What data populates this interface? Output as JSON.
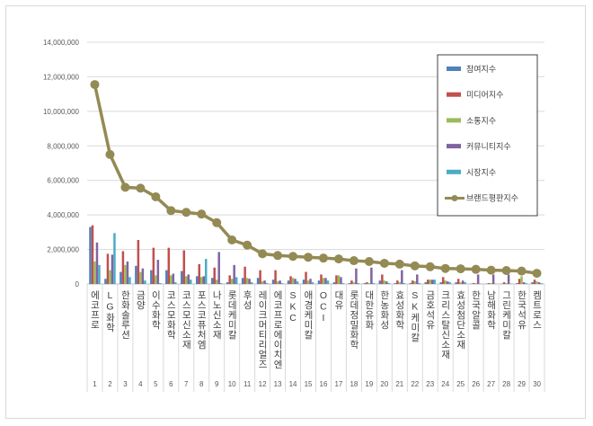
{
  "chart_data": {
    "type": "bar",
    "title": "",
    "xlabel": "",
    "ylabel": "",
    "ylim": [
      0,
      14000000
    ],
    "yticks": [
      "0",
      "2,000,000",
      "4,000,000",
      "6,000,000",
      "8,000,000",
      "10,000,000",
      "12,000,000",
      "14,000,000"
    ],
    "grid": true,
    "legend_position": "right",
    "numbers": [
      "1",
      "2",
      "3",
      "4",
      "5",
      "6",
      "7",
      "8",
      "9",
      "10",
      "11",
      "12",
      "13",
      "14",
      "15",
      "16",
      "17",
      "18",
      "19",
      "20",
      "21",
      "22",
      "23",
      "24",
      "25",
      "26",
      "27",
      "28",
      "29",
      "30"
    ],
    "categories": [
      "에코프로",
      "LG화학",
      "한화솔루션",
      "금양",
      "이수화학",
      "코스모화학",
      "코스모신소재",
      "포스코퓨처엠",
      "나노신소재",
      "롯데케미칼",
      "후성",
      "레이크머티리얼즈",
      "에코프로에이치엔",
      "SKC",
      "애경케미칼",
      "OCI",
      "대유",
      "롯데정밀화학",
      "대한유화",
      "한농화성",
      "효성화학",
      "SK케미칼",
      "금호석유",
      "크리스탈신소재",
      "효성첨단소재",
      "한국알콜",
      "남해화학",
      "그린케미칼",
      "한국석유",
      "켐트로스"
    ],
    "series": [
      {
        "name": "참여지수",
        "kind": "bar",
        "color": "#4F81BD",
        "values": [
          3300000,
          300000,
          700000,
          1050000,
          800000,
          800000,
          750000,
          450000,
          350000,
          100000,
          350000,
          350000,
          250000,
          200000,
          250000,
          200000,
          100000,
          50000,
          50000,
          200000,
          50000,
          50000,
          100000,
          100000,
          100000,
          20000,
          20000,
          20000,
          50000,
          100000
        ]
      },
      {
        "name": "미디어지수",
        "kind": "bar",
        "color": "#C0504D",
        "values": [
          3400000,
          1750000,
          1900000,
          2550000,
          2100000,
          2100000,
          1950000,
          1150000,
          950000,
          500000,
          1000000,
          800000,
          800000,
          450000,
          700000,
          550000,
          500000,
          200000,
          100000,
          550000,
          200000,
          200000,
          250000,
          400000,
          300000,
          50000,
          50000,
          100000,
          300000,
          250000
        ]
      },
      {
        "name": "소통지수",
        "kind": "bar",
        "color": "#9BBB59",
        "values": [
          1300000,
          800000,
          1100000,
          700000,
          500000,
          500000,
          450000,
          400000,
          250000,
          300000,
          350000,
          150000,
          150000,
          350000,
          200000,
          350000,
          500000,
          100000,
          50000,
          200000,
          100000,
          150000,
          250000,
          200000,
          100000,
          50000,
          50000,
          50000,
          450000,
          150000
        ]
      },
      {
        "name": "커뮤니티지수",
        "kind": "bar",
        "color": "#8064A2",
        "values": [
          2400000,
          1700000,
          1300000,
          900000,
          1400000,
          600000,
          550000,
          450000,
          1850000,
          1100000,
          300000,
          200000,
          200000,
          300000,
          300000,
          350000,
          400000,
          900000,
          950000,
          150000,
          800000,
          550000,
          250000,
          150000,
          200000,
          550000,
          550000,
          550000,
          100000,
          100000
        ]
      },
      {
        "name": "시장지수",
        "kind": "bar",
        "color": "#4BACC6",
        "values": [
          1100000,
          2950000,
          400000,
          200000,
          50000,
          100000,
          250000,
          1450000,
          50000,
          400000,
          100000,
          50000,
          50000,
          150000,
          100000,
          200000,
          50000,
          50000,
          50000,
          50000,
          50000,
          50000,
          250000,
          100000,
          100000,
          20000,
          20000,
          20000,
          50000,
          50000
        ]
      },
      {
        "name": "브랜드평판지수",
        "kind": "line",
        "color": "#948A54",
        "values": [
          11550000,
          7500000,
          5600000,
          5550000,
          5050000,
          4250000,
          4150000,
          4050000,
          3550000,
          2550000,
          2250000,
          1750000,
          1650000,
          1600000,
          1550000,
          1500000,
          1450000,
          1350000,
          1300000,
          1200000,
          1150000,
          1050000,
          1000000,
          900000,
          880000,
          850000,
          800000,
          780000,
          750000,
          620000
        ]
      }
    ]
  }
}
